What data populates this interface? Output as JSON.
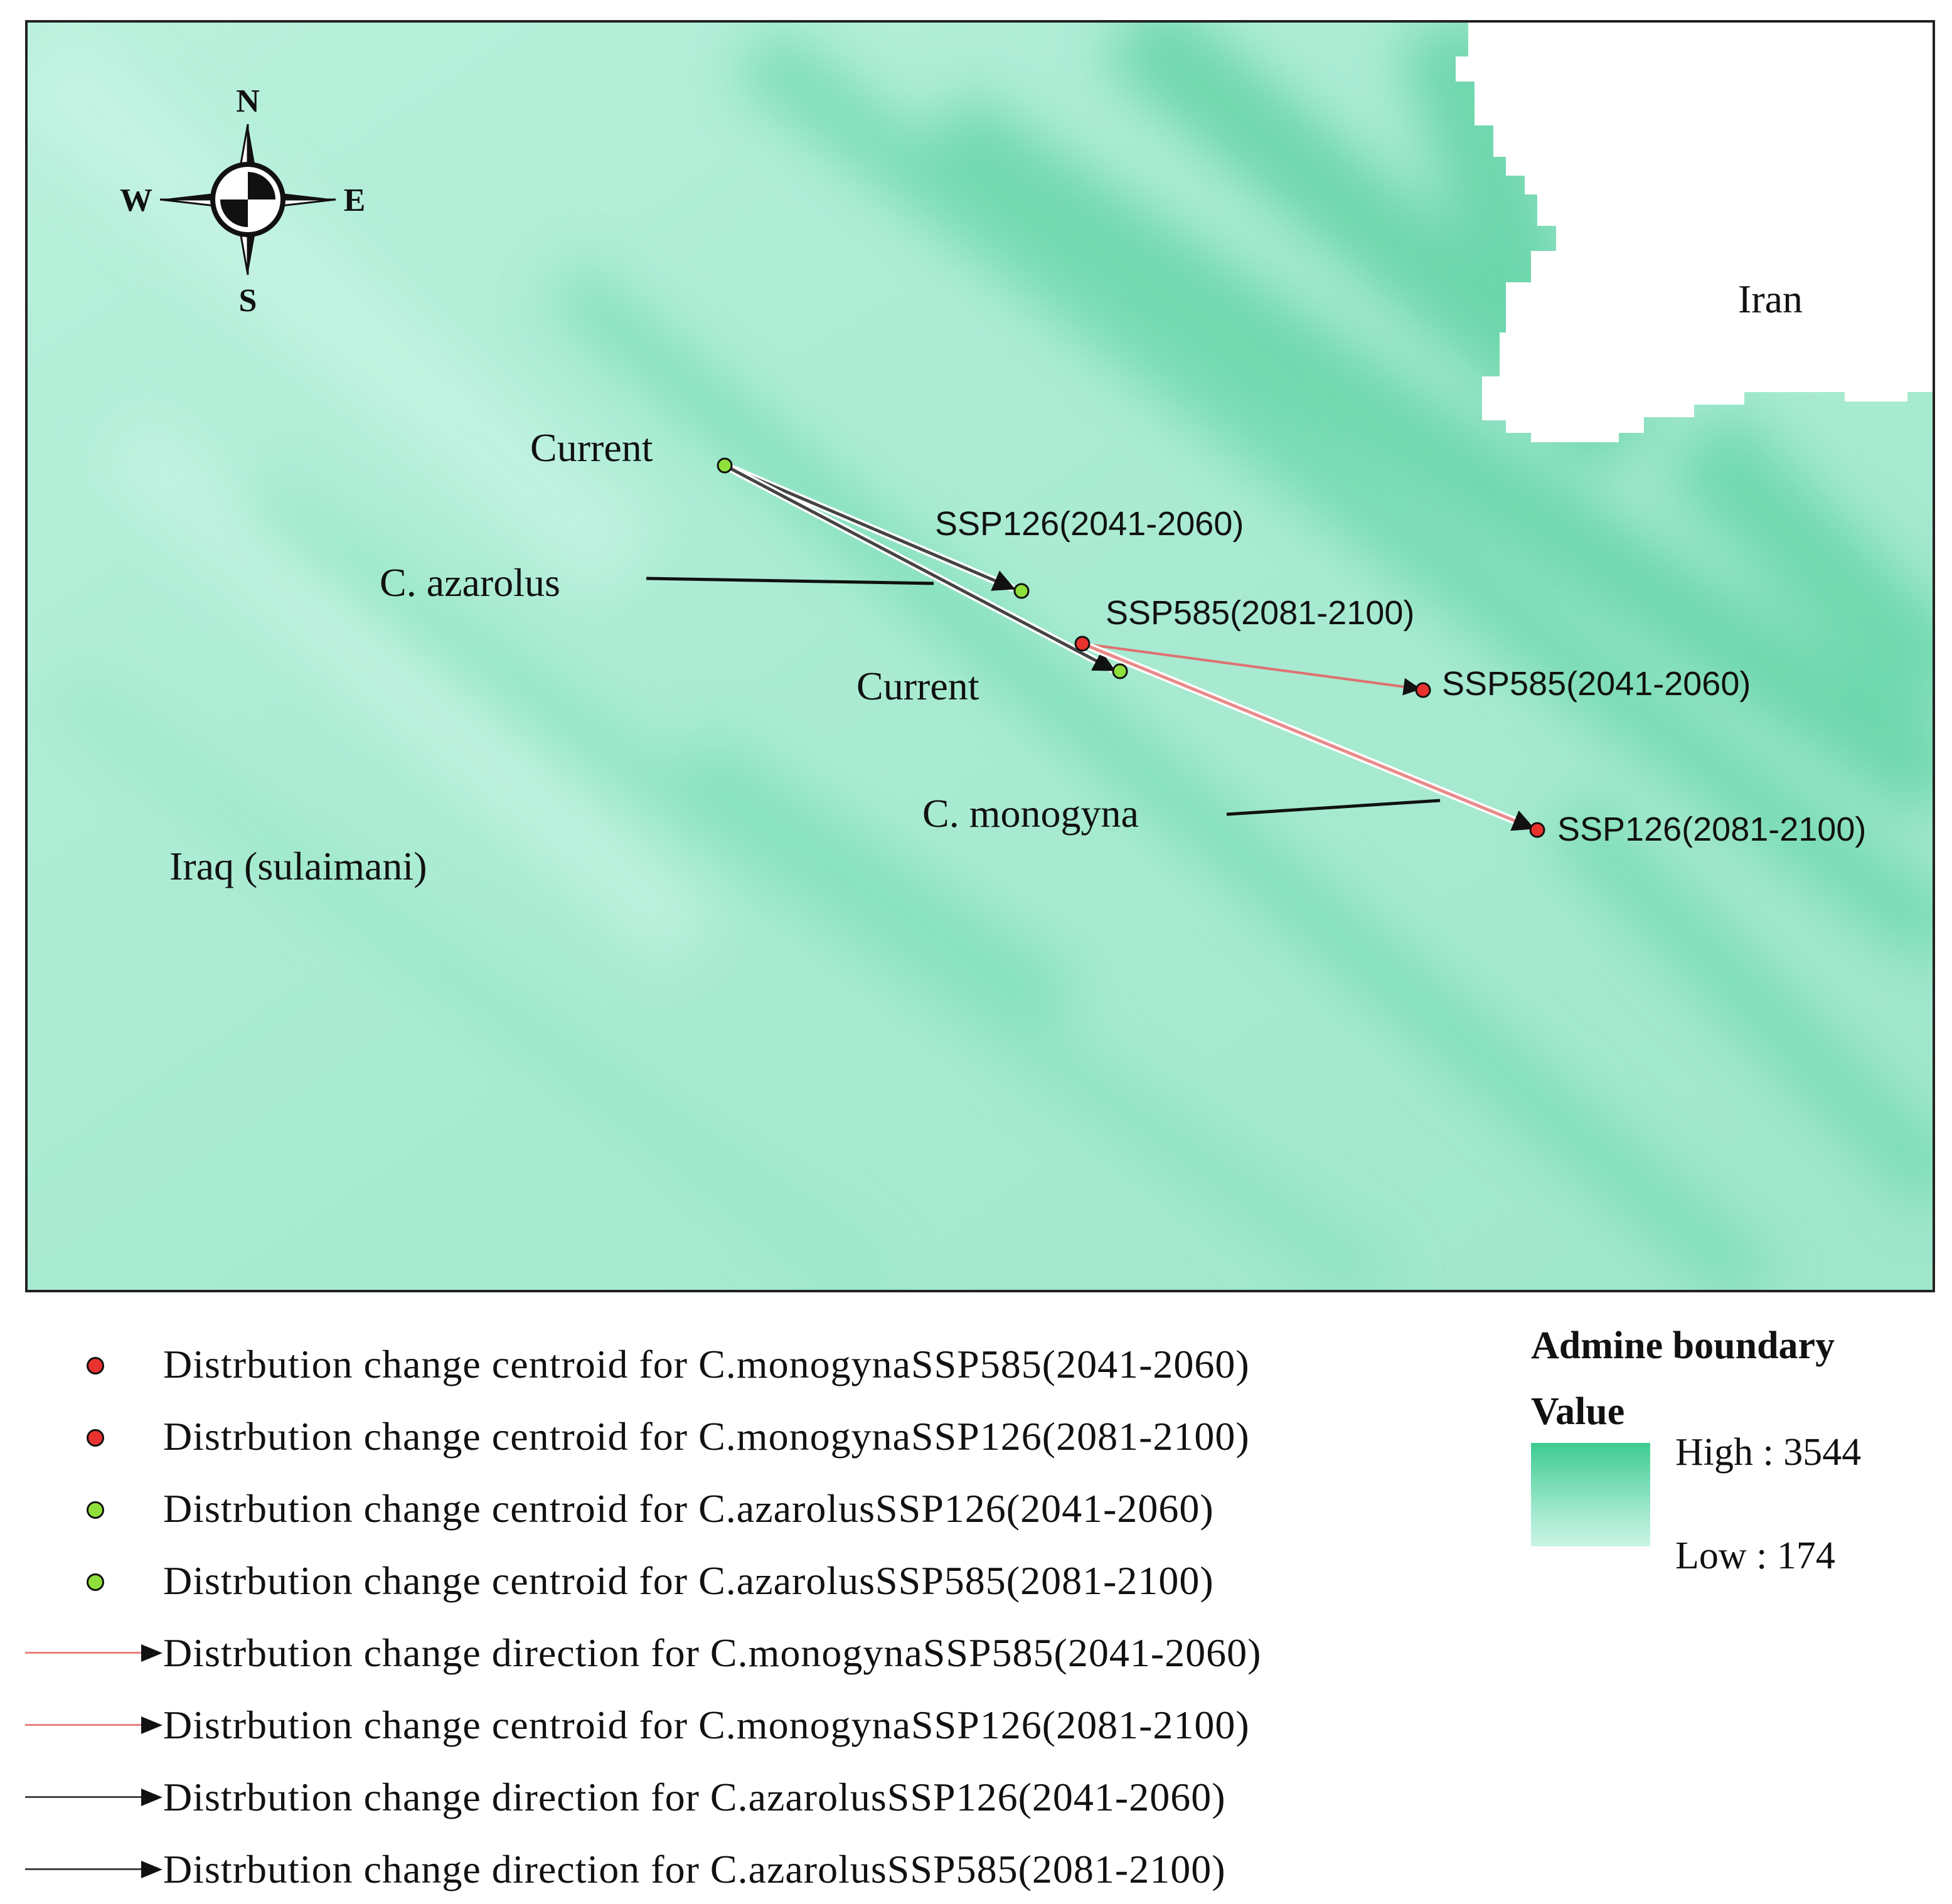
{
  "map": {
    "country_labels": {
      "iran": "Iran",
      "iraq": "Iraq (sulaimani)"
    },
    "compass": {
      "n": "N",
      "s": "S",
      "e": "E",
      "w": "W"
    },
    "species_labels": {
      "azarolus": "C. azarolus",
      "monogyna": "C. monogyna"
    },
    "point_labels": {
      "azarolus_current": "Current",
      "monogyna_current": "Current",
      "azarolus_ssp126_2041": "SSP126(2041-2060)",
      "monogyna_ssp585_2081": "SSP585(2081-2100)",
      "monogyna_ssp585_2041": "SSP585(2041-2060)",
      "monogyna_ssp126_2081": "SSP126(2081-2100)"
    },
    "colors": {
      "raster_low": "#c8f4e4",
      "raster_high": "#3dcb91",
      "monogyna_point": "#e8322e",
      "azarolus_point": "#8fe03a",
      "monogyna_line": "#e88080",
      "azarolus_line": "#555555"
    }
  },
  "legend": {
    "items": [
      {
        "text": "Distrbution change centroid for C.monogynaSSP585(2041-2060)",
        "symbol": "red-dot"
      },
      {
        "text": "Distrbution change centroid for C.monogynaSSP126(2081-2100)",
        "symbol": "red-dot"
      },
      {
        "text": "Distrbution change centroid for C.azarolusSSP126(2041-2060)",
        "symbol": "green-dot"
      },
      {
        "text": "Distrbution change centroid for C.azarolusSSP585(2081-2100)",
        "symbol": "green-dot"
      },
      {
        "text": "Distrbution change direction for C.monogynaSSP585(2041-2060)",
        "symbol": "red-arrow"
      },
      {
        "text": "Distrbution change centroid for C.monogynaSSP126(2081-2100)",
        "symbol": "red-arrow"
      },
      {
        "text": "Distrbution change direction for C.azarolusSSP126(2041-2060)",
        "symbol": "black-arrow"
      },
      {
        "text": "Distrbution change direction for C.azarolusSSP585(2081-2100)",
        "symbol": "black-arrow"
      }
    ]
  },
  "boundary_legend": {
    "title": "Admine boundary",
    "subtitle": "Value",
    "high_label": "High : 3544",
    "low_label": "Low : 174"
  }
}
